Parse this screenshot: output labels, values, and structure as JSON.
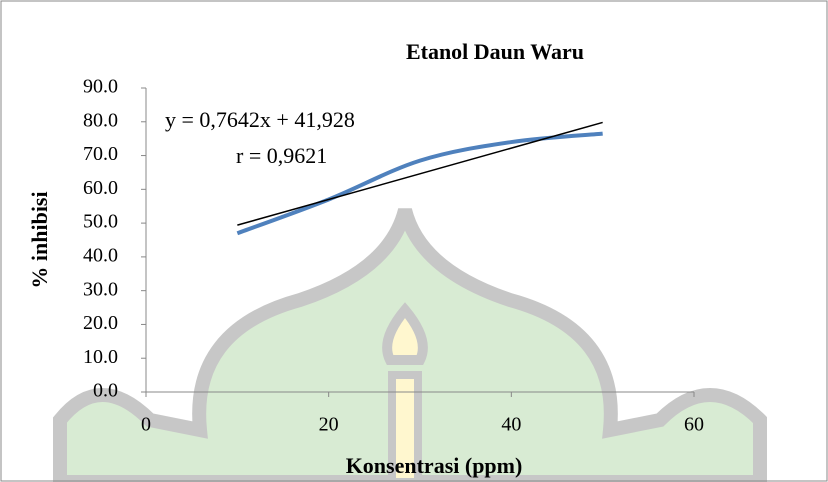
{
  "chart_data": {
    "type": "scatter-smooth",
    "title": "Etanol Daun Waru",
    "x_label": "Konsentrasi (ppm)",
    "y_label": "% inhibisi",
    "annotations": [
      "y = 0,7642x + 41,928",
      "r = 0,9621"
    ],
    "x": [
      10,
      20,
      30,
      40,
      50
    ],
    "series": [
      {
        "name": "% inhibisi",
        "color": "#4f81bd",
        "values": [
          47.0,
          57.0,
          68.5,
          74.0,
          76.5
        ]
      }
    ],
    "trendline_color": "#000000",
    "xlim": [
      0,
      60
    ],
    "xticks": [
      0,
      20,
      40,
      60
    ],
    "ylim": [
      0,
      90
    ],
    "yticks": [
      {
        "value": 0,
        "label": "0.0"
      },
      {
        "value": 10,
        "label": "10.0"
      },
      {
        "value": 20,
        "label": "20.0"
      },
      {
        "value": 30,
        "label": "30.0"
      },
      {
        "value": 40,
        "label": "40.0"
      },
      {
        "value": 50,
        "label": "50.0"
      },
      {
        "value": 60,
        "label": "60.0"
      },
      {
        "value": 70,
        "label": "70.0"
      },
      {
        "value": 80,
        "label": "80.0"
      },
      {
        "value": 90,
        "label": "90.0"
      }
    ]
  }
}
